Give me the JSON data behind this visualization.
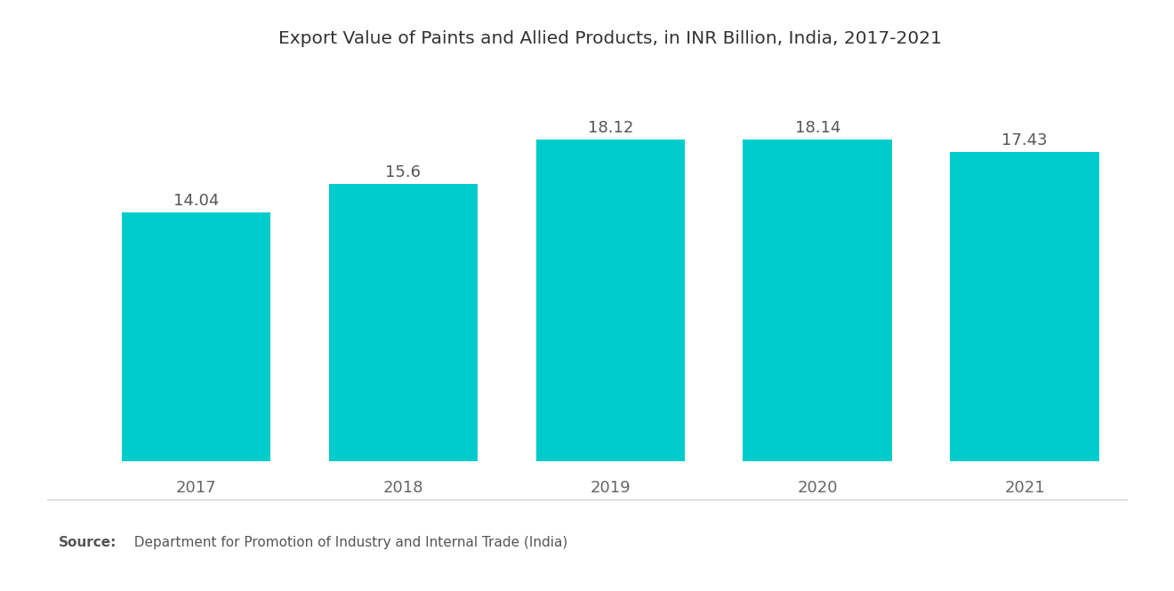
{
  "title": "Export Value of Paints and Allied Products, in INR Billion, India, 2017-2021",
  "categories": [
    "2017",
    "2018",
    "2019",
    "2020",
    "2021"
  ],
  "values": [
    14.04,
    15.6,
    18.12,
    18.14,
    17.43
  ],
  "bar_color": "#00CCCC",
  "background_color": "#ffffff",
  "title_fontsize": 14.5,
  "label_fontsize": 13,
  "tick_fontsize": 13,
  "source_bold": "Source:",
  "source_text": "  Department for Promotion of Industry and Internal Trade (India)",
  "source_fontsize": 11,
  "ylim": [
    0,
    22
  ],
  "bar_width": 0.72
}
